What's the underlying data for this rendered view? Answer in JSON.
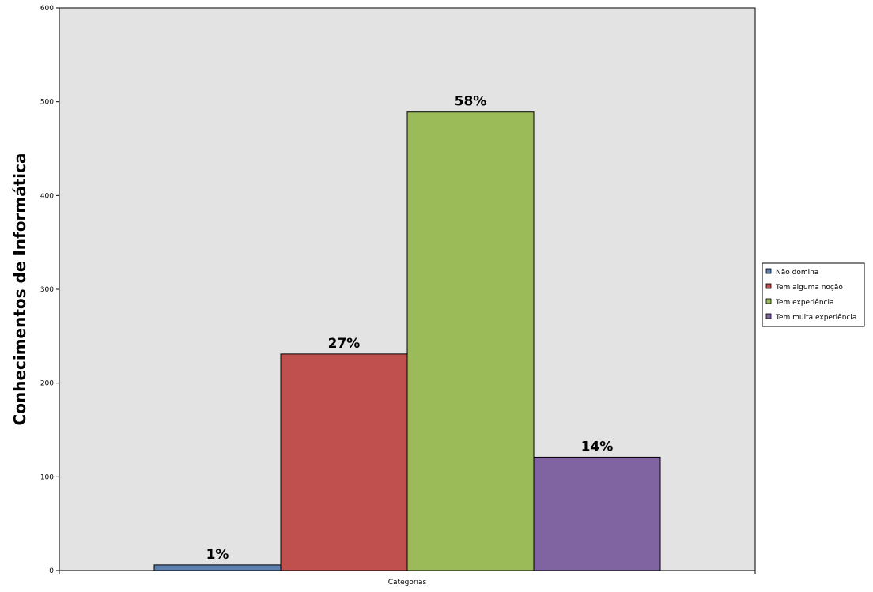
{
  "chart_data": {
    "type": "bar",
    "ylabel": "Conhecimentos de Informática",
    "xlabel": "",
    "categories": [
      "Categorias"
    ],
    "ylim": [
      0,
      600
    ],
    "yticks": [
      0,
      100,
      200,
      300,
      400,
      500,
      600
    ],
    "grid": false,
    "legend_position": "right",
    "plot_background": "#e3e3e3",
    "series": [
      {
        "name": "Não domina",
        "values": [
          6
        ],
        "label": "1%",
        "color": "#5b80b2"
      },
      {
        "name": "Tem alguma noção",
        "values": [
          231
        ],
        "label": "27%",
        "color": "#c0504d"
      },
      {
        "name": "Tem experiência",
        "values": [
          489
        ],
        "label": "58%",
        "color": "#9bbb59"
      },
      {
        "name": "Tem muita experiência",
        "values": [
          121
        ],
        "label": "14%",
        "color": "#8064a2"
      }
    ]
  }
}
